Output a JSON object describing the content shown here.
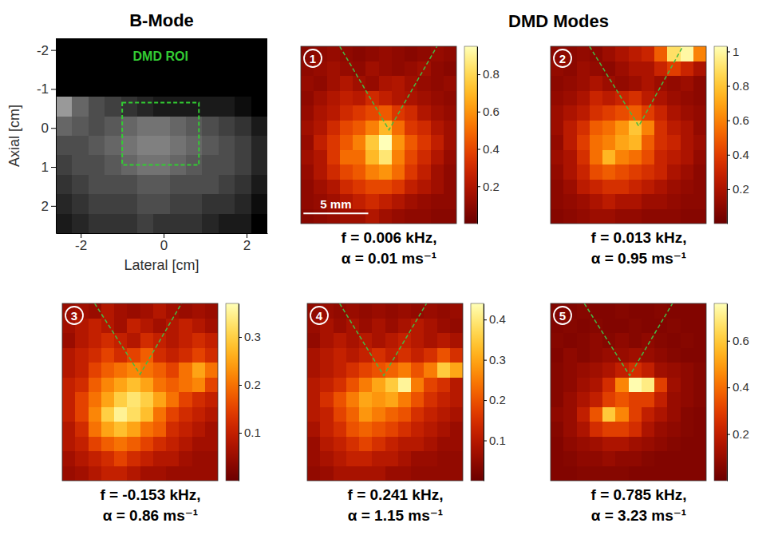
{
  "heading": "DMD Modes",
  "chart_data": [
    {
      "type": "image",
      "title": "B-Mode",
      "xlabel": "Lateral [cm]",
      "ylabel": "Axial [cm]",
      "xlim": [
        -2.6,
        2.5
      ],
      "ylim": [
        -2.3,
        2.7
      ],
      "xticks": [
        -2,
        0,
        2
      ],
      "yticks": [
        -2,
        -1,
        0,
        1,
        2
      ],
      "cells": [
        [
          0,
          0,
          0,
          0,
          0,
          0,
          0,
          0,
          0,
          0,
          0,
          0,
          0
        ],
        [
          0,
          0,
          0,
          0,
          0,
          0,
          0,
          0,
          0,
          0,
          0,
          0,
          0
        ],
        [
          0,
          0,
          0,
          0,
          0,
          0,
          0,
          0,
          0,
          0,
          0,
          0,
          0
        ],
        [
          0.6,
          0.4,
          0.3,
          0.25,
          0.2,
          0.15,
          0.1,
          0.1,
          0.1,
          0.1,
          0.1,
          0.05,
          0
        ],
        [
          0.4,
          0.35,
          0.3,
          0.35,
          0.4,
          0.45,
          0.45,
          0.4,
          0.35,
          0.3,
          0.25,
          0.2,
          0.1
        ],
        [
          0.3,
          0.3,
          0.35,
          0.4,
          0.45,
          0.5,
          0.5,
          0.45,
          0.4,
          0.35,
          0.3,
          0.25,
          0.15
        ],
        [
          0.25,
          0.3,
          0.3,
          0.35,
          0.4,
          0.45,
          0.45,
          0.4,
          0.35,
          0.3,
          0.3,
          0.25,
          0.15
        ],
        [
          0.2,
          0.25,
          0.3,
          0.3,
          0.3,
          0.35,
          0.35,
          0.3,
          0.3,
          0.3,
          0.25,
          0.2,
          0.1
        ],
        [
          0.15,
          0.2,
          0.25,
          0.25,
          0.25,
          0.3,
          0.3,
          0.25,
          0.25,
          0.2,
          0.2,
          0.15,
          0.05
        ],
        [
          0.1,
          0.15,
          0.2,
          0.2,
          0.2,
          0.25,
          0.2,
          0.2,
          0.2,
          0.15,
          0.1,
          0.1,
          0
        ]
      ],
      "roi": {
        "label": "DMD ROI",
        "x": [
          -1,
          0.85
        ],
        "y": [
          -0.65,
          0.95
        ]
      }
    },
    {
      "type": "heatmap",
      "label": "1",
      "xlim": [
        0,
        12
      ],
      "ylim": [
        0,
        14
      ],
      "tick_labels": false,
      "clim": [
        0,
        0.95
      ],
      "cticks": [
        0.2,
        0.4,
        0.6,
        0.8
      ],
      "cone": {
        "x": [
          3,
          6.8,
          10.5
        ],
        "y": [
          0,
          6.6,
          0
        ]
      },
      "scalebar": {
        "label": "5 mm",
        "length": 5
      },
      "annotations": [
        "f = 0.006 kHz,",
        "α = 0.01 ms⁻¹"
      ],
      "cells": [
        [
          0.08,
          0.1,
          0.12,
          0.1,
          0.08,
          0.1,
          0.12,
          0.1,
          0.08,
          0.1,
          0.12,
          0.1
        ],
        [
          0.1,
          0.12,
          0.15,
          0.12,
          0.1,
          0.15,
          0.12,
          0.1,
          0.12,
          0.15,
          0.1,
          0.08
        ],
        [
          0.12,
          0.1,
          0.15,
          0.2,
          0.15,
          0.12,
          0.18,
          0.2,
          0.15,
          0.12,
          0.1,
          0.12
        ],
        [
          0.1,
          0.15,
          0.2,
          0.25,
          0.22,
          0.3,
          0.25,
          0.2,
          0.18,
          0.15,
          0.12,
          0.1
        ],
        [
          0.12,
          0.18,
          0.22,
          0.3,
          0.35,
          0.4,
          0.45,
          0.35,
          0.3,
          0.2,
          0.15,
          0.12
        ],
        [
          0.15,
          0.2,
          0.3,
          0.4,
          0.45,
          0.55,
          0.7,
          0.5,
          0.35,
          0.3,
          0.2,
          0.15
        ],
        [
          0.12,
          0.25,
          0.35,
          0.45,
          0.55,
          0.75,
          0.95,
          0.6,
          0.45,
          0.35,
          0.25,
          0.15
        ],
        [
          0.15,
          0.2,
          0.35,
          0.5,
          0.5,
          0.7,
          0.85,
          0.55,
          0.4,
          0.3,
          0.2,
          0.12
        ],
        [
          0.12,
          0.2,
          0.3,
          0.4,
          0.45,
          0.55,
          0.6,
          0.5,
          0.35,
          0.25,
          0.15,
          0.1
        ],
        [
          0.1,
          0.15,
          0.2,
          0.3,
          0.35,
          0.4,
          0.4,
          0.35,
          0.25,
          0.2,
          0.15,
          0.1
        ],
        [
          0.1,
          0.12,
          0.15,
          0.2,
          0.25,
          0.3,
          0.25,
          0.2,
          0.15,
          0.12,
          0.1,
          0.1
        ],
        [
          0.08,
          0.1,
          0.12,
          0.15,
          0.15,
          0.2,
          0.15,
          0.12,
          0.1,
          0.1,
          0.08,
          0.08
        ]
      ]
    },
    {
      "type": "heatmap",
      "label": "2",
      "xlim": [
        0,
        12
      ],
      "ylim": [
        0,
        14
      ],
      "tick_labels": false,
      "clim": [
        0,
        1.03
      ],
      "cticks": [
        0.2,
        0.4,
        0.6,
        0.8,
        1
      ],
      "cone": {
        "x": [
          3,
          6.8,
          10.2
        ],
        "y": [
          0,
          6.3,
          0
        ]
      },
      "annotations": [
        "f = 0.013 kHz,",
        "α = 0.95 ms⁻¹"
      ],
      "cells": [
        [
          0.1,
          0.1,
          0.12,
          0.1,
          0.15,
          0.2,
          0.25,
          0.3,
          0.5,
          0.9,
          1.0,
          0.6
        ],
        [
          0.12,
          0.1,
          0.15,
          0.12,
          0.1,
          0.15,
          0.2,
          0.2,
          0.3,
          0.4,
          0.3,
          0.2
        ],
        [
          0.1,
          0.12,
          0.15,
          0.2,
          0.15,
          0.12,
          0.15,
          0.2,
          0.15,
          0.12,
          0.15,
          0.1
        ],
        [
          0.12,
          0.15,
          0.2,
          0.3,
          0.25,
          0.3,
          0.35,
          0.25,
          0.2,
          0.15,
          0.12,
          0.1
        ],
        [
          0.15,
          0.2,
          0.25,
          0.35,
          0.4,
          0.45,
          0.5,
          0.4,
          0.3,
          0.2,
          0.15,
          0.12
        ],
        [
          0.15,
          0.25,
          0.35,
          0.5,
          0.55,
          0.65,
          0.8,
          0.6,
          0.35,
          0.25,
          0.2,
          0.12
        ],
        [
          0.12,
          0.25,
          0.4,
          0.55,
          0.6,
          0.7,
          0.75,
          0.5,
          0.35,
          0.3,
          0.2,
          0.15
        ],
        [
          0.15,
          0.2,
          0.35,
          0.55,
          0.75,
          0.6,
          0.55,
          0.45,
          0.3,
          0.25,
          0.2,
          0.12
        ],
        [
          0.12,
          0.2,
          0.3,
          0.45,
          0.5,
          0.45,
          0.4,
          0.35,
          0.3,
          0.2,
          0.15,
          0.1
        ],
        [
          0.1,
          0.15,
          0.25,
          0.3,
          0.35,
          0.35,
          0.3,
          0.25,
          0.2,
          0.15,
          0.12,
          0.1
        ],
        [
          0.1,
          0.12,
          0.15,
          0.2,
          0.25,
          0.2,
          0.2,
          0.15,
          0.15,
          0.12,
          0.1,
          0.1
        ],
        [
          0.08,
          0.1,
          0.12,
          0.15,
          0.15,
          0.12,
          0.12,
          0.1,
          0.1,
          0.1,
          0.08,
          0.08
        ]
      ]
    },
    {
      "type": "heatmap",
      "label": "3",
      "xlim": [
        0,
        12
      ],
      "ylim": [
        0,
        14
      ],
      "tick_labels": false,
      "clim": [
        0,
        0.37
      ],
      "cticks": [
        0.1,
        0.2,
        0.3
      ],
      "cone": {
        "x": [
          2.5,
          6,
          9.2
        ],
        "y": [
          0,
          5.6,
          0
        ]
      },
      "annotations": [
        "f = -0.153 kHz,",
        "α = 0.86 ms⁻¹"
      ],
      "cells": [
        [
          0.05,
          0.06,
          0.05,
          0.08,
          0.06,
          0.05,
          0.06,
          0.08,
          0.06,
          0.05,
          0.06,
          0.05
        ],
        [
          0.06,
          0.08,
          0.1,
          0.08,
          0.06,
          0.1,
          0.08,
          0.06,
          0.08,
          0.1,
          0.08,
          0.06
        ],
        [
          0.05,
          0.08,
          0.1,
          0.12,
          0.1,
          0.08,
          0.12,
          0.1,
          0.08,
          0.1,
          0.12,
          0.1
        ],
        [
          0.08,
          0.1,
          0.12,
          0.15,
          0.12,
          0.15,
          0.18,
          0.12,
          0.1,
          0.12,
          0.15,
          0.12
        ],
        [
          0.08,
          0.1,
          0.15,
          0.18,
          0.2,
          0.22,
          0.2,
          0.18,
          0.15,
          0.2,
          0.25,
          0.2
        ],
        [
          0.1,
          0.12,
          0.18,
          0.22,
          0.25,
          0.28,
          0.25,
          0.2,
          0.18,
          0.2,
          0.22,
          0.15
        ],
        [
          0.1,
          0.15,
          0.2,
          0.25,
          0.3,
          0.33,
          0.3,
          0.25,
          0.2,
          0.15,
          0.12,
          0.1
        ],
        [
          0.1,
          0.15,
          0.22,
          0.3,
          0.35,
          0.32,
          0.28,
          0.2,
          0.15,
          0.12,
          0.1,
          0.08
        ],
        [
          0.08,
          0.12,
          0.2,
          0.25,
          0.28,
          0.25,
          0.2,
          0.18,
          0.12,
          0.1,
          0.08,
          0.06
        ],
        [
          0.08,
          0.1,
          0.15,
          0.18,
          0.2,
          0.18,
          0.15,
          0.12,
          0.1,
          0.08,
          0.06,
          0.06
        ],
        [
          0.06,
          0.08,
          0.1,
          0.12,
          0.15,
          0.12,
          0.1,
          0.08,
          0.08,
          0.06,
          0.05,
          0.05
        ],
        [
          0.05,
          0.06,
          0.08,
          0.1,
          0.1,
          0.08,
          0.06,
          0.06,
          0.05,
          0.05,
          0.05,
          0.05
        ]
      ]
    },
    {
      "type": "heatmap",
      "label": "4",
      "xlim": [
        0,
        12
      ],
      "ylim": [
        0,
        14
      ],
      "tick_labels": false,
      "clim": [
        0,
        0.44
      ],
      "cticks": [
        0.1,
        0.2,
        0.3,
        0.4
      ],
      "cone": {
        "x": [
          2.5,
          5.9,
          9.2
        ],
        "y": [
          0,
          5.7,
          0
        ]
      },
      "annotations": [
        "f = 0.241 kHz,",
        "α = 1.15 ms⁻¹"
      ],
      "cells": [
        [
          0.05,
          0.06,
          0.05,
          0.06,
          0.05,
          0.06,
          0.05,
          0.06,
          0.05,
          0.06,
          0.05,
          0.06
        ],
        [
          0.06,
          0.08,
          0.06,
          0.08,
          0.06,
          0.08,
          0.06,
          0.08,
          0.1,
          0.08,
          0.06,
          0.05
        ],
        [
          0.05,
          0.08,
          0.1,
          0.08,
          0.1,
          0.08,
          0.1,
          0.12,
          0.1,
          0.08,
          0.1,
          0.08
        ],
        [
          0.08,
          0.1,
          0.12,
          0.1,
          0.12,
          0.15,
          0.12,
          0.15,
          0.12,
          0.15,
          0.2,
          0.15
        ],
        [
          0.08,
          0.1,
          0.12,
          0.15,
          0.18,
          0.2,
          0.22,
          0.25,
          0.2,
          0.25,
          0.35,
          0.3
        ],
        [
          0.1,
          0.12,
          0.15,
          0.2,
          0.25,
          0.3,
          0.35,
          0.42,
          0.25,
          0.18,
          0.15,
          0.1
        ],
        [
          0.1,
          0.15,
          0.2,
          0.25,
          0.3,
          0.28,
          0.3,
          0.25,
          0.2,
          0.15,
          0.12,
          0.1
        ],
        [
          0.1,
          0.12,
          0.18,
          0.22,
          0.28,
          0.25,
          0.22,
          0.2,
          0.15,
          0.12,
          0.1,
          0.08
        ],
        [
          0.08,
          0.12,
          0.15,
          0.2,
          0.22,
          0.2,
          0.18,
          0.15,
          0.12,
          0.1,
          0.08,
          0.06
        ],
        [
          0.06,
          0.1,
          0.12,
          0.15,
          0.18,
          0.15,
          0.12,
          0.1,
          0.1,
          0.08,
          0.06,
          0.06
        ],
        [
          0.06,
          0.08,
          0.1,
          0.12,
          0.12,
          0.1,
          0.1,
          0.08,
          0.06,
          0.06,
          0.05,
          0.05
        ],
        [
          0.05,
          0.06,
          0.08,
          0.08,
          0.08,
          0.08,
          0.06,
          0.06,
          0.05,
          0.05,
          0.05,
          0.05
        ]
      ]
    },
    {
      "type": "heatmap",
      "label": "5",
      "xlim": [
        0,
        12
      ],
      "ylim": [
        0,
        14
      ],
      "tick_labels": false,
      "clim": [
        0,
        0.76
      ],
      "cticks": [
        0.2,
        0.4,
        0.6
      ],
      "cone": {
        "x": [
          2.6,
          6.1,
          9.4
        ],
        "y": [
          0,
          5.7,
          0
        ]
      },
      "annotations": [
        "f = 0.785 kHz,",
        "α = 3.23 ms⁻¹"
      ],
      "cells": [
        [
          0.05,
          0.05,
          0.06,
          0.05,
          0.05,
          0.06,
          0.05,
          0.05,
          0.06,
          0.05,
          0.05,
          0.05
        ],
        [
          0.05,
          0.06,
          0.05,
          0.06,
          0.05,
          0.05,
          0.06,
          0.05,
          0.05,
          0.06,
          0.05,
          0.05
        ],
        [
          0.06,
          0.05,
          0.06,
          0.08,
          0.06,
          0.08,
          0.06,
          0.08,
          0.06,
          0.05,
          0.06,
          0.05
        ],
        [
          0.05,
          0.08,
          0.06,
          0.08,
          0.1,
          0.1,
          0.12,
          0.1,
          0.08,
          0.06,
          0.05,
          0.05
        ],
        [
          0.06,
          0.08,
          0.1,
          0.12,
          0.15,
          0.2,
          0.25,
          0.2,
          0.12,
          0.1,
          0.08,
          0.06
        ],
        [
          0.06,
          0.08,
          0.12,
          0.15,
          0.25,
          0.45,
          0.75,
          0.7,
          0.3,
          0.12,
          0.08,
          0.06
        ],
        [
          0.06,
          0.1,
          0.15,
          0.2,
          0.3,
          0.35,
          0.3,
          0.3,
          0.2,
          0.1,
          0.08,
          0.06
        ],
        [
          0.08,
          0.1,
          0.2,
          0.35,
          0.6,
          0.45,
          0.3,
          0.2,
          0.15,
          0.1,
          0.06,
          0.05
        ],
        [
          0.06,
          0.1,
          0.15,
          0.25,
          0.3,
          0.3,
          0.25,
          0.15,
          0.1,
          0.08,
          0.06,
          0.05
        ],
        [
          0.05,
          0.08,
          0.1,
          0.12,
          0.15,
          0.15,
          0.12,
          0.1,
          0.08,
          0.06,
          0.05,
          0.05
        ],
        [
          0.05,
          0.06,
          0.08,
          0.08,
          0.1,
          0.08,
          0.08,
          0.06,
          0.05,
          0.05,
          0.05,
          0.05
        ],
        [
          0.05,
          0.05,
          0.06,
          0.06,
          0.06,
          0.06,
          0.05,
          0.05,
          0.05,
          0.05,
          0.05,
          0.05
        ]
      ]
    }
  ]
}
